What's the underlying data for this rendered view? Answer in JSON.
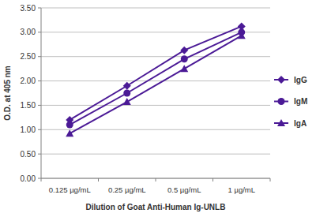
{
  "chart_data": {
    "type": "line",
    "x_label": "Dilution of Goat Anti-Human Ig-UNLB",
    "y_label": "O.D. at 405 nm",
    "categories": [
      "0.125 µg/mL",
      "0.25 µg/mL",
      "0.5 µg/mL",
      "1 µg/mL"
    ],
    "series": [
      {
        "name": "IgG",
        "color": "#4b1a96",
        "marker": "diamond",
        "values": [
          1.2,
          1.9,
          2.63,
          3.12
        ]
      },
      {
        "name": "IgM",
        "color": "#4b1a96",
        "marker": "circle",
        "values": [
          1.1,
          1.75,
          2.45,
          3.0
        ]
      },
      {
        "name": "IgA",
        "color": "#4b1a96",
        "marker": "triangle",
        "values": [
          0.92,
          1.57,
          2.25,
          2.93
        ]
      }
    ],
    "ylim": [
      0,
      3.5
    ],
    "yticks": [
      {
        "value": 0,
        "label": "0.00"
      },
      {
        "value": 0.5,
        "label": "0.50"
      },
      {
        "value": 1,
        "label": "1.00"
      },
      {
        "value": 1.5,
        "label": "1.50"
      },
      {
        "value": 2,
        "label": "2.00"
      },
      {
        "value": 2.5,
        "label": "2.50"
      },
      {
        "value": 3,
        "label": "3.00"
      },
      {
        "value": 3.5,
        "label": "3.50"
      }
    ],
    "grid": true,
    "legend": "right"
  }
}
